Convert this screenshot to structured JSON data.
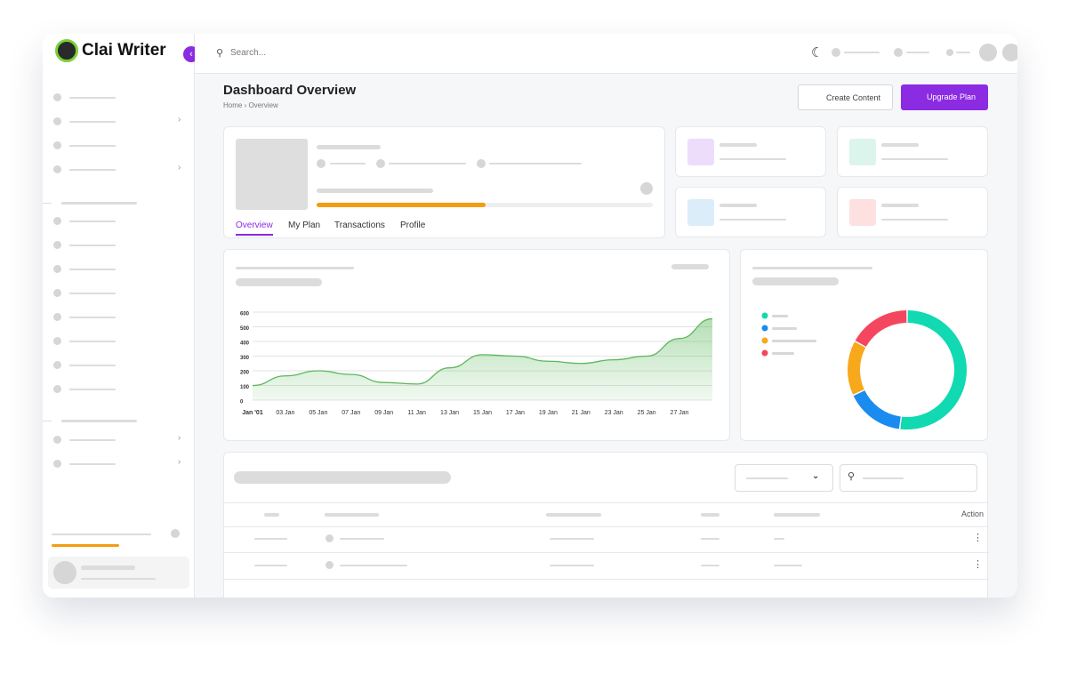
{
  "brand": "Clai Writer",
  "search_placeholder": "Search...",
  "header": {
    "title": "Dashboard Overview",
    "breadcrumb": [
      "Home",
      "Overview"
    ]
  },
  "buttons": [
    "Create Content",
    "Upgrade Plan"
  ],
  "tabs": [
    "Overview",
    "My Plan",
    "Transactions",
    "Profile"
  ],
  "area_chart": {
    "type": "area",
    "color": "#5cb85c",
    "categories": [
      "Jan '01",
      "03 Jan",
      "05 Jan",
      "07 Jan",
      "09 Jan",
      "11 Jan",
      "13 Jan",
      "15 Jan",
      "17 Jan",
      "19 Jan",
      "21 Jan",
      "23 Jan",
      "25 Jan",
      "27 Jan",
      null
    ],
    "values": [
      100,
      165,
      200,
      175,
      120,
      110,
      220,
      310,
      300,
      265,
      250,
      275,
      300,
      420,
      555
    ],
    "ylim": [
      0,
      600
    ],
    "yticks": [
      0,
      100,
      200,
      300,
      400,
      500,
      600
    ],
    "grid": true
  },
  "donut_chart": {
    "type": "donut",
    "values": [
      52,
      16,
      15,
      17
    ],
    "colors": [
      "#11d9b1",
      "#1a8cf0",
      "#f7a81b",
      "#f4475f"
    ]
  },
  "table": {
    "header_action": "Action"
  }
}
